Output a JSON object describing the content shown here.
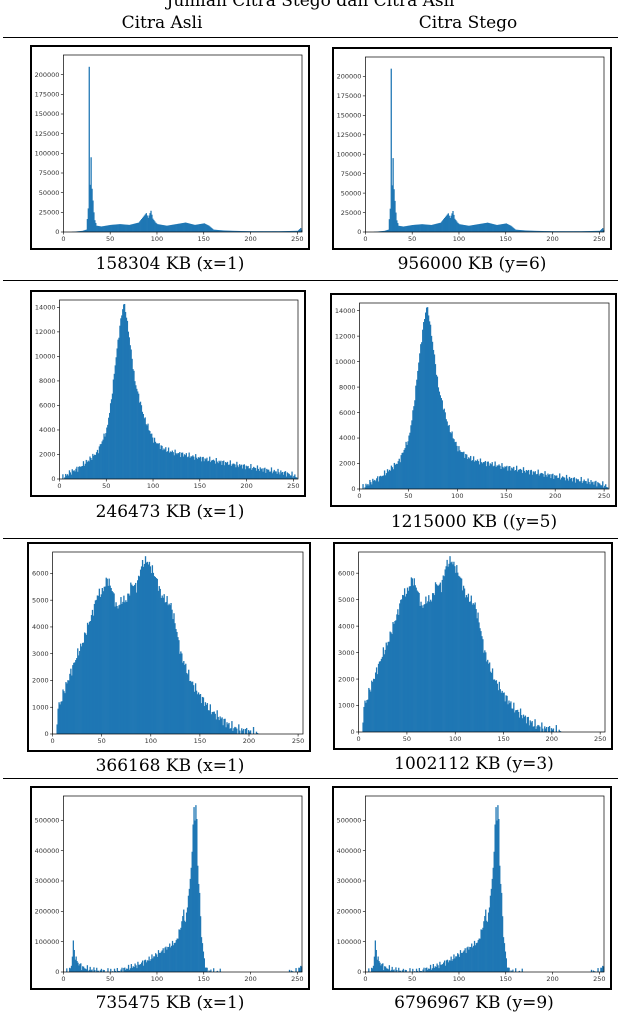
{
  "top_text": "Jumlah Citra Stego dan Citra Asli",
  "columns": [
    "Citra Asli",
    "Citra Stego"
  ],
  "rows": [
    {
      "left_caption": "158304 KB (x=1)",
      "right_caption": "956000 KB (y=6)"
    },
    {
      "left_caption": "246473 KB (x=1)",
      "right_caption": "1215000 KB ((y=5)"
    },
    {
      "left_caption": "366168 KB (x=1)",
      "right_caption": "1002112 KB (y=3)"
    },
    {
      "left_caption": "735475 KB (x=1)",
      "right_caption": "6796967 KB (y=9)"
    }
  ],
  "colors": {
    "bar": "#1f77b4"
  },
  "chart_data": [
    {
      "type": "area",
      "title": "",
      "xlabel": "",
      "ylabel": "",
      "xlim": [
        0,
        255
      ],
      "ylim": [
        0,
        225000
      ],
      "xticks": [
        0,
        50,
        100,
        150,
        200,
        250
      ],
      "yticks": [
        0,
        25000,
        50000,
        75000,
        100000,
        125000,
        150000,
        175000,
        200000
      ],
      "x": [
        0,
        10,
        20,
        24,
        26,
        27,
        28,
        29,
        30,
        31,
        32,
        33,
        35,
        40,
        50,
        60,
        70,
        80,
        88,
        90,
        93,
        95,
        98,
        100,
        110,
        120,
        130,
        140,
        150,
        155,
        160,
        170,
        180,
        200,
        230,
        250,
        253,
        255
      ],
      "y": [
        0,
        300,
        1500,
        3000,
        30000,
        210000,
        60000,
        95000,
        55000,
        40000,
        25000,
        15000,
        8000,
        7000,
        9000,
        10000,
        9000,
        12000,
        24000,
        18000,
        27000,
        17000,
        12000,
        10000,
        8000,
        10000,
        12000,
        9000,
        11000,
        8000,
        3000,
        2000,
        1500,
        1000,
        1000,
        1500,
        5000,
        0
      ]
    },
    {
      "type": "area",
      "title": "",
      "xlabel": "",
      "ylabel": "",
      "xlim": [
        0,
        255
      ],
      "ylim": [
        0,
        14600
      ],
      "xticks": [
        0,
        50,
        100,
        150,
        200,
        250
      ],
      "yticks": [
        0,
        2000,
        4000,
        6000,
        8000,
        10000,
        12000,
        14000
      ],
      "x": [
        0,
        5,
        10,
        20,
        30,
        40,
        50,
        55,
        60,
        65,
        68,
        70,
        75,
        80,
        90,
        100,
        110,
        120,
        150,
        200,
        240,
        250,
        255
      ],
      "y": [
        0,
        200,
        500,
        900,
        1500,
        2200,
        4000,
        6500,
        10000,
        13000,
        14300,
        13800,
        11000,
        8000,
        5000,
        3200,
        2500,
        2200,
        1700,
        1000,
        500,
        300,
        0
      ],
      "jitter": 280
    },
    {
      "type": "area",
      "title": "",
      "xlabel": "",
      "ylabel": "",
      "xlim": [
        0,
        255
      ],
      "ylim": [
        0,
        6800
      ],
      "xticks": [
        0,
        50,
        100,
        150,
        200,
        250
      ],
      "yticks": [
        0,
        1000,
        2000,
        3000,
        4000,
        5000,
        6000
      ],
      "x": [
        0,
        3,
        5,
        8,
        10,
        15,
        20,
        25,
        30,
        35,
        40,
        45,
        50,
        55,
        60,
        65,
        70,
        75,
        80,
        85,
        90,
        95,
        100,
        105,
        110,
        115,
        120,
        125,
        130,
        140,
        150,
        160,
        170,
        180,
        190,
        200,
        210,
        220,
        230,
        255
      ],
      "y": [
        0,
        0,
        1000,
        1200,
        1500,
        2000,
        2500,
        3000,
        3400,
        4000,
        4500,
        5200,
        5300,
        5800,
        5400,
        4700,
        5000,
        5000,
        5600,
        5500,
        6300,
        6500,
        6200,
        5800,
        5200,
        5000,
        4800,
        4000,
        3000,
        2000,
        1400,
        900,
        600,
        300,
        150,
        80,
        0,
        0,
        0,
        0
      ],
      "jitter": 220
    },
    {
      "type": "area",
      "title": "",
      "xlabel": "",
      "ylabel": "",
      "xlim": [
        0,
        255
      ],
      "ylim": [
        0,
        580000
      ],
      "xticks": [
        0,
        50,
        100,
        150,
        200,
        250
      ],
      "yticks": [
        0,
        100000,
        200000,
        300000,
        400000,
        500000
      ],
      "x": [
        0,
        5,
        8,
        10,
        12,
        15,
        20,
        30,
        40,
        50,
        60,
        70,
        80,
        90,
        100,
        110,
        115,
        120,
        125,
        128,
        130,
        133,
        135,
        137,
        139,
        140,
        141,
        142,
        143,
        145,
        147,
        150,
        152,
        155,
        160,
        170,
        200,
        240,
        250,
        252,
        254,
        255
      ],
      "y": [
        0,
        1000,
        20000,
        95000,
        50000,
        30000,
        15000,
        8000,
        3000,
        2000,
        5000,
        15000,
        25000,
        40000,
        60000,
        80000,
        90000,
        100000,
        150000,
        200000,
        160000,
        250000,
        300000,
        400000,
        550000,
        500000,
        550000,
        500000,
        350000,
        250000,
        120000,
        40000,
        10000,
        3000,
        1000,
        0,
        0,
        0,
        2000,
        15000,
        25000,
        0
      ],
      "jitter": 12000
    }
  ]
}
